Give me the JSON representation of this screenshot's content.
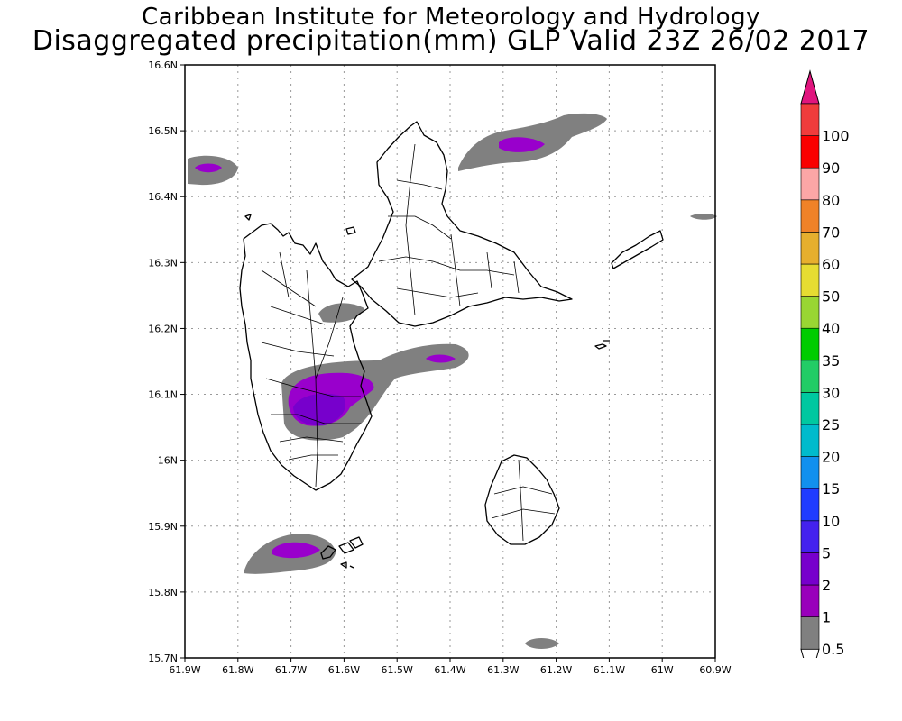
{
  "header": {
    "title_line1": "Caribbean Institute for Meteorology and Hydrology",
    "title_line2": "Disaggregated precipitation(mm) GLP Valid 23Z 26/02 2017"
  },
  "map": {
    "lon_range": [
      -61.9,
      -60.9
    ],
    "lat_range": [
      15.7,
      16.6
    ],
    "x_ticks": [
      {
        "value": -61.9,
        "label": "61.9W"
      },
      {
        "value": -61.8,
        "label": "61.8W"
      },
      {
        "value": -61.7,
        "label": "61.7W"
      },
      {
        "value": -61.6,
        "label": "61.6W"
      },
      {
        "value": -61.5,
        "label": "61.5W"
      },
      {
        "value": -61.4,
        "label": "61.4W"
      },
      {
        "value": -61.3,
        "label": "61.3W"
      },
      {
        "value": -61.2,
        "label": "61.2W"
      },
      {
        "value": -61.1,
        "label": "61.1W"
      },
      {
        "value": -61.0,
        "label": "61W"
      },
      {
        "value": -60.9,
        "label": "60.9W"
      }
    ],
    "y_ticks": [
      {
        "value": 15.7,
        "label": "15.7N"
      },
      {
        "value": 15.8,
        "label": "15.8N"
      },
      {
        "value": 15.9,
        "label": "15.9N"
      },
      {
        "value": 16.0,
        "label": "16N"
      },
      {
        "value": 16.1,
        "label": "16.1N"
      },
      {
        "value": 16.2,
        "label": "16.2N"
      },
      {
        "value": 16.3,
        "label": "16.3N"
      },
      {
        "value": 16.4,
        "label": "16.4N"
      },
      {
        "value": 16.5,
        "label": "16.5N"
      },
      {
        "value": 16.6,
        "label": "16.6N"
      }
    ],
    "grid": true,
    "colors": {
      "land_fill": "#ffffff",
      "coast": "#000000",
      "rain_0_5": "#808080",
      "rain_2": "#9900cc",
      "rain_5": "#7700cc"
    }
  },
  "legend": {
    "levels": [
      {
        "label": "0.5",
        "color": "#808080"
      },
      {
        "label": "1",
        "color": "#9900bb"
      },
      {
        "label": "2",
        "color": "#7700cc"
      },
      {
        "label": "5",
        "color": "#4422ee"
      },
      {
        "label": "10",
        "color": "#1f3cff"
      },
      {
        "label": "15",
        "color": "#1290ee"
      },
      {
        "label": "20",
        "color": "#00bbcc"
      },
      {
        "label": "25",
        "color": "#00c8a0"
      },
      {
        "label": "30",
        "color": "#22cc66"
      },
      {
        "label": "35",
        "color": "#00cc00"
      },
      {
        "label": "40",
        "color": "#99d633"
      },
      {
        "label": "50",
        "color": "#e6dc32"
      },
      {
        "label": "60",
        "color": "#e6af2e"
      },
      {
        "label": "70",
        "color": "#f08228"
      },
      {
        "label": "80",
        "color": "#fca6a6"
      },
      {
        "label": "90",
        "color": "#fa0000"
      },
      {
        "label": "100",
        "color": "#f03c3c"
      }
    ],
    "top_arrow_color": "#e0157e"
  }
}
